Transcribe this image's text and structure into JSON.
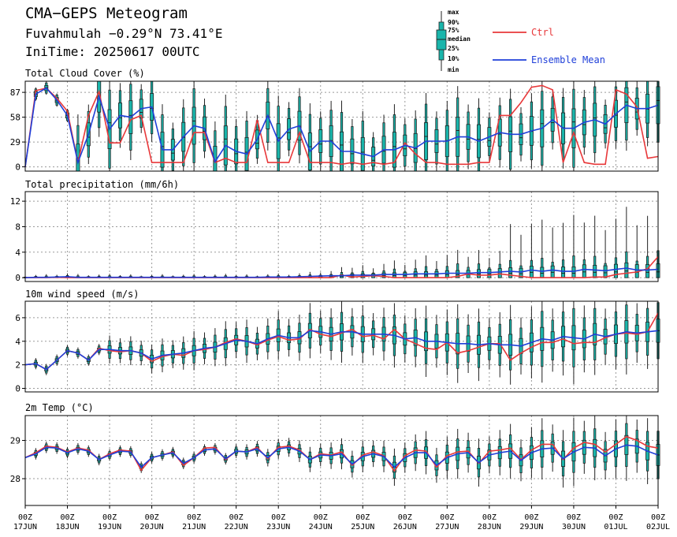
{
  "header": {
    "title": "CMA−GEPS Meteogram",
    "location": "Fuvahmulah −0.29°N 73.41°E",
    "init_time": "IniTime: 20250617 00UTC"
  },
  "legend": {
    "box_labels": [
      "max",
      "90%",
      "75%",
      "median",
      "25%",
      "10%",
      "min"
    ],
    "ctrl_label": "Ctrl",
    "mean_label": "Ensemble Mean",
    "ctrl_color": "#e8383a",
    "mean_color": "#1f3fd9",
    "box_color": "#1ab5ab"
  },
  "chart_data": {
    "type": "line",
    "x_tick_labels": [
      [
        "00Z",
        "17JUN"
      ],
      [
        "00Z",
        "18JUN"
      ],
      [
        "00Z",
        "19JUN"
      ],
      [
        "00Z",
        "20JUN"
      ],
      [
        "00Z",
        "21JUN"
      ],
      [
        "00Z",
        "22JUN"
      ],
      [
        "00Z",
        "23JUN"
      ],
      [
        "00Z",
        "24JUN"
      ],
      [
        "00Z",
        "25JUN"
      ],
      [
        "00Z",
        "26JUN"
      ],
      [
        "00Z",
        "27JUN"
      ],
      [
        "00Z",
        "28JUN"
      ],
      [
        "00Z",
        "29JUN"
      ],
      [
        "00Z",
        "30JUN"
      ],
      [
        "00Z",
        "01JUL"
      ],
      [
        "00Z",
        "02JUL"
      ]
    ],
    "time_step_hours": 6,
    "panels": [
      {
        "title": "Total Cloud Cover (%)",
        "yticks": [
          0,
          29,
          58,
          87
        ],
        "ylim": [
          -5,
          100
        ],
        "ctrl": [
          0,
          89,
          92,
          80,
          65,
          5,
          60,
          88,
          28,
          28,
          55,
          60,
          5,
          5,
          5,
          5,
          40,
          40,
          5,
          10,
          5,
          5,
          55,
          5,
          5,
          5,
          40,
          5,
          5,
          5,
          3,
          5,
          3,
          5,
          3,
          5,
          28,
          15,
          5,
          5,
          3,
          3,
          3,
          5,
          5,
          60,
          60,
          75,
          93,
          95,
          90,
          5,
          40,
          5,
          3,
          3,
          90,
          85,
          70,
          10,
          12
        ],
        "mean": [
          0,
          85,
          92,
          78,
          60,
          5,
          38,
          82,
          44,
          60,
          58,
          68,
          70,
          20,
          20,
          35,
          48,
          45,
          6,
          25,
          18,
          15,
          32,
          60,
          30,
          44,
          48,
          18,
          30,
          30,
          18,
          18,
          15,
          12,
          20,
          20,
          25,
          22,
          30,
          30,
          30,
          35,
          35,
          30,
          35,
          40,
          38,
          38,
          42,
          45,
          55,
          45,
          45,
          52,
          55,
          50,
          62,
          72,
          68,
          68,
          72
        ]
      },
      {
        "title": "Total precipitation (mm/6h)",
        "yticks": [
          0,
          4,
          8,
          12
        ],
        "ylim": [
          -0.6,
          13.5
        ],
        "ctrl": [
          0,
          0,
          0,
          0.05,
          0,
          0,
          0,
          0,
          0,
          0,
          0,
          0,
          0,
          0,
          0,
          0,
          0,
          0,
          0,
          0,
          0,
          0,
          0,
          0,
          0,
          0,
          0,
          0,
          0,
          0,
          0.4,
          0.1,
          0.2,
          0.3,
          0.2,
          0,
          0,
          0,
          0,
          0,
          0,
          0.2,
          0.6,
          0.4,
          0.4,
          0.6,
          0.4,
          0.2,
          0,
          0,
          0,
          0,
          0,
          0,
          0.1,
          0.1,
          0.5,
          0.7,
          0.9,
          1.4,
          3.3
        ],
        "mean": [
          0,
          0.05,
          0.05,
          0.1,
          0.15,
          0.05,
          0.05,
          0.05,
          0.05,
          0.05,
          0.05,
          0.05,
          0.05,
          0.05,
          0.05,
          0.05,
          0.05,
          0.05,
          0.05,
          0.05,
          0.05,
          0.05,
          0.05,
          0.1,
          0.1,
          0.1,
          0.15,
          0.2,
          0.25,
          0.3,
          0.3,
          0.4,
          0.4,
          0.4,
          0.5,
          0.5,
          0.5,
          0.6,
          0.6,
          0.6,
          0.7,
          0.7,
          0.7,
          0.8,
          0.8,
          0.9,
          1.0,
          0.9,
          1.2,
          1.0,
          1.2,
          1.0,
          1.0,
          1.3,
          1.2,
          1.1,
          1.3,
          1.5,
          1.2,
          1.2,
          1.3
        ]
      },
      {
        "title": "10m wind speed (m/s)",
        "yticks": [
          0,
          2,
          4,
          6
        ],
        "ylim": [
          -0.3,
          7.4
        ],
        "ctrl": [
          2.0,
          2.1,
          1.6,
          2.4,
          3.2,
          3.0,
          2.4,
          3.4,
          3.2,
          3.1,
          3.2,
          3.0,
          2.3,
          2.7,
          2.9,
          2.8,
          3.2,
          3.3,
          3.5,
          3.9,
          4.2,
          4.0,
          3.7,
          4.1,
          4.4,
          4.1,
          4.2,
          5.0,
          4.6,
          4.4,
          4.7,
          5.0,
          4.4,
          4.5,
          4.2,
          5.0,
          4.2,
          3.8,
          3.4,
          3.3,
          3.9,
          3.0,
          3.2,
          3.5,
          3.8,
          3.8,
          2.4,
          3.0,
          3.5,
          3.9,
          3.9,
          4.2,
          3.8,
          3.9,
          3.9,
          4.3,
          4.6,
          4.7,
          4.6,
          4.8,
          6.4
        ],
        "mean": [
          2.0,
          2.1,
          1.6,
          2.4,
          3.2,
          3.0,
          2.4,
          3.3,
          3.3,
          3.2,
          3.2,
          3.0,
          2.5,
          2.8,
          2.9,
          3.0,
          3.2,
          3.4,
          3.5,
          3.8,
          4.1,
          4.0,
          3.8,
          4.2,
          4.5,
          4.3,
          4.3,
          4.9,
          4.8,
          4.6,
          4.8,
          4.8,
          4.6,
          4.6,
          4.6,
          4.5,
          4.2,
          4.3,
          4.0,
          4.0,
          3.9,
          3.8,
          3.8,
          3.7,
          3.8,
          3.7,
          3.7,
          3.6,
          3.9,
          4.2,
          4.1,
          4.4,
          4.3,
          4.2,
          4.6,
          4.4,
          4.6,
          4.8,
          4.7,
          4.8,
          4.9
        ]
      },
      {
        "title": "2m Temp (°C)",
        "yticks": [
          28,
          29
        ],
        "ylim": [
          27.3,
          29.65
        ],
        "ctrl": [
          28.55,
          28.68,
          28.85,
          28.82,
          28.7,
          28.8,
          28.75,
          28.5,
          28.65,
          28.75,
          28.72,
          28.22,
          28.55,
          28.62,
          28.7,
          28.35,
          28.55,
          28.8,
          28.82,
          28.5,
          28.72,
          28.7,
          28.82,
          28.52,
          28.82,
          28.85,
          28.75,
          28.5,
          28.65,
          28.62,
          28.7,
          28.35,
          28.62,
          28.7,
          28.6,
          28.2,
          28.6,
          28.75,
          28.72,
          28.3,
          28.6,
          28.7,
          28.72,
          28.4,
          28.72,
          28.75,
          28.8,
          28.5,
          28.75,
          28.9,
          28.9,
          28.5,
          28.8,
          28.95,
          28.9,
          28.7,
          28.9,
          29.1,
          29.0,
          28.85,
          28.8
        ],
        "mean": [
          28.55,
          28.65,
          28.82,
          28.8,
          28.68,
          28.78,
          28.72,
          28.5,
          28.62,
          28.72,
          28.7,
          28.3,
          28.55,
          28.62,
          28.68,
          28.4,
          28.55,
          28.75,
          28.78,
          28.52,
          28.72,
          28.7,
          28.78,
          28.55,
          28.78,
          28.82,
          28.72,
          28.5,
          28.62,
          28.6,
          28.65,
          28.38,
          28.58,
          28.65,
          28.58,
          28.3,
          28.55,
          28.68,
          28.68,
          28.35,
          28.55,
          28.65,
          28.68,
          28.42,
          28.62,
          28.68,
          28.72,
          28.48,
          28.68,
          28.78,
          28.8,
          28.52,
          28.7,
          28.82,
          28.8,
          28.6,
          28.78,
          28.88,
          28.85,
          28.72,
          28.62
        ]
      }
    ]
  }
}
